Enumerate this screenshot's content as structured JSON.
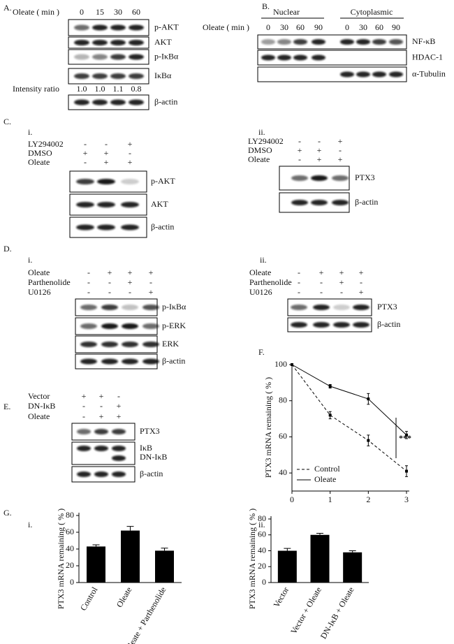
{
  "panels": {
    "A": {
      "label": "A.",
      "treatment": "Oleate ( min )",
      "lanes": [
        "0",
        "15",
        "30",
        "60"
      ],
      "blots": [
        "p-AKT",
        "AKT",
        "p-IκBα",
        "IκBα",
        "β-actin"
      ],
      "ratio_label": "Intensity ratio",
      "ratios": [
        "1.0",
        "1.0",
        "1.1",
        "0.8"
      ]
    },
    "B": {
      "label": "B.",
      "groups": [
        "Nuclear",
        "Cytoplasmic"
      ],
      "treatment": "Oleate ( min )",
      "lanes": [
        "0",
        "30",
        "60",
        "90",
        "0",
        "30",
        "60",
        "90"
      ],
      "blots": [
        "NF-κB",
        "HDAC-1",
        "α-Tubulin"
      ]
    },
    "C": {
      "label": "C.",
      "sub": [
        {
          "label": "i.",
          "rows": [
            {
              "name": "LY294002",
              "signs": [
                "-",
                "-",
                "+"
              ]
            },
            {
              "name": "DMSO",
              "signs": [
                "+",
                "+",
                "-"
              ]
            },
            {
              "name": "Oleate",
              "signs": [
                "-",
                "+",
                "+"
              ]
            }
          ],
          "blots": [
            "p-AKT",
            "AKT",
            "β-actin"
          ]
        },
        {
          "label": "ii.",
          "rows": [
            {
              "name": "LY294002",
              "signs": [
                "-",
                "-",
                "+"
              ]
            },
            {
              "name": "DMSO",
              "signs": [
                "+",
                "+",
                "-"
              ]
            },
            {
              "name": "Oleate",
              "signs": [
                "-",
                "+",
                "+"
              ]
            }
          ],
          "blots": [
            "PTX3",
            "β-actin"
          ]
        }
      ]
    },
    "D": {
      "label": "D.",
      "sub": [
        {
          "label": "i.",
          "rows": [
            {
              "name": "Oleate",
              "signs": [
                "-",
                "+",
                "+",
                "+"
              ]
            },
            {
              "name": "Parthenolide",
              "signs": [
                "-",
                "-",
                "+",
                "-"
              ]
            },
            {
              "name": "U0126",
              "signs": [
                "-",
                "-",
                "-",
                "+"
              ]
            }
          ],
          "blots": [
            "p-IκBα",
            "p-ERK",
            "ERK",
            "β-actin"
          ]
        },
        {
          "label": "ii.",
          "rows": [
            {
              "name": "Oleate",
              "signs": [
                "-",
                "+",
                "+",
                "+"
              ]
            },
            {
              "name": "Parthenolide",
              "signs": [
                "-",
                "-",
                "+",
                "-"
              ]
            },
            {
              "name": "U0126",
              "signs": [
                "-",
                "-",
                "-",
                "+"
              ]
            }
          ],
          "blots": [
            "PTX3",
            "β-actin"
          ]
        }
      ]
    },
    "E": {
      "label": "E.",
      "rows": [
        {
          "name": "Vector",
          "signs": [
            "+",
            "+",
            "-"
          ]
        },
        {
          "name": "DN-IκB",
          "signs": [
            "-",
            "-",
            "+"
          ]
        },
        {
          "name": "Oleate",
          "signs": [
            "-",
            "+",
            "+"
          ]
        }
      ],
      "blots": [
        "PTX3",
        "IκB",
        "DN-IκB",
        "β-actin"
      ]
    }
  },
  "chart_data": [
    {
      "type": "line",
      "panel_label": "F.",
      "ylabel": "PTX3 mRNA remaining ( % )",
      "x": [
        0,
        1,
        2,
        3
      ],
      "series": [
        {
          "name": "Control",
          "color": "#000000",
          "style": "dashed",
          "values": [
            100,
            72,
            58,
            41
          ],
          "errors": [
            0,
            2,
            3,
            3
          ]
        },
        {
          "name": "Oleate",
          "color": "#000000",
          "style": "solid",
          "values": [
            100,
            88,
            81,
            61
          ],
          "errors": [
            0,
            1,
            3,
            2
          ]
        }
      ],
      "xlim": [
        0,
        3
      ],
      "ylim": [
        30,
        100
      ],
      "xticks": [
        0,
        1,
        2,
        3
      ],
      "yticks": [
        40,
        60,
        80,
        100
      ],
      "annotation": "***"
    },
    {
      "type": "bar",
      "panel_label": "G.",
      "sub_label": "i.",
      "ylabel": "PTX3 mRNA remaining ( % )",
      "categories": [
        "Control",
        "Oleate",
        "Oleate + Parthenolide"
      ],
      "values": [
        43,
        62,
        38
      ],
      "errors": [
        2,
        5,
        3
      ],
      "color": "#000000",
      "ylim": [
        0,
        80
      ],
      "yticks": [
        0,
        20,
        40,
        60,
        80
      ]
    },
    {
      "type": "bar",
      "sub_label": "ii.",
      "ylabel": "PTX3 mRNA remaining ( % )",
      "categories": [
        "Vector",
        "Vector + Oleate",
        "DN-IκB + Oleate"
      ],
      "values": [
        40,
        60,
        38
      ],
      "errors": [
        3,
        2,
        2
      ],
      "color": "#000000",
      "ylim": [
        0,
        80
      ],
      "yticks": [
        0,
        20,
        40,
        60,
        80
      ]
    }
  ]
}
